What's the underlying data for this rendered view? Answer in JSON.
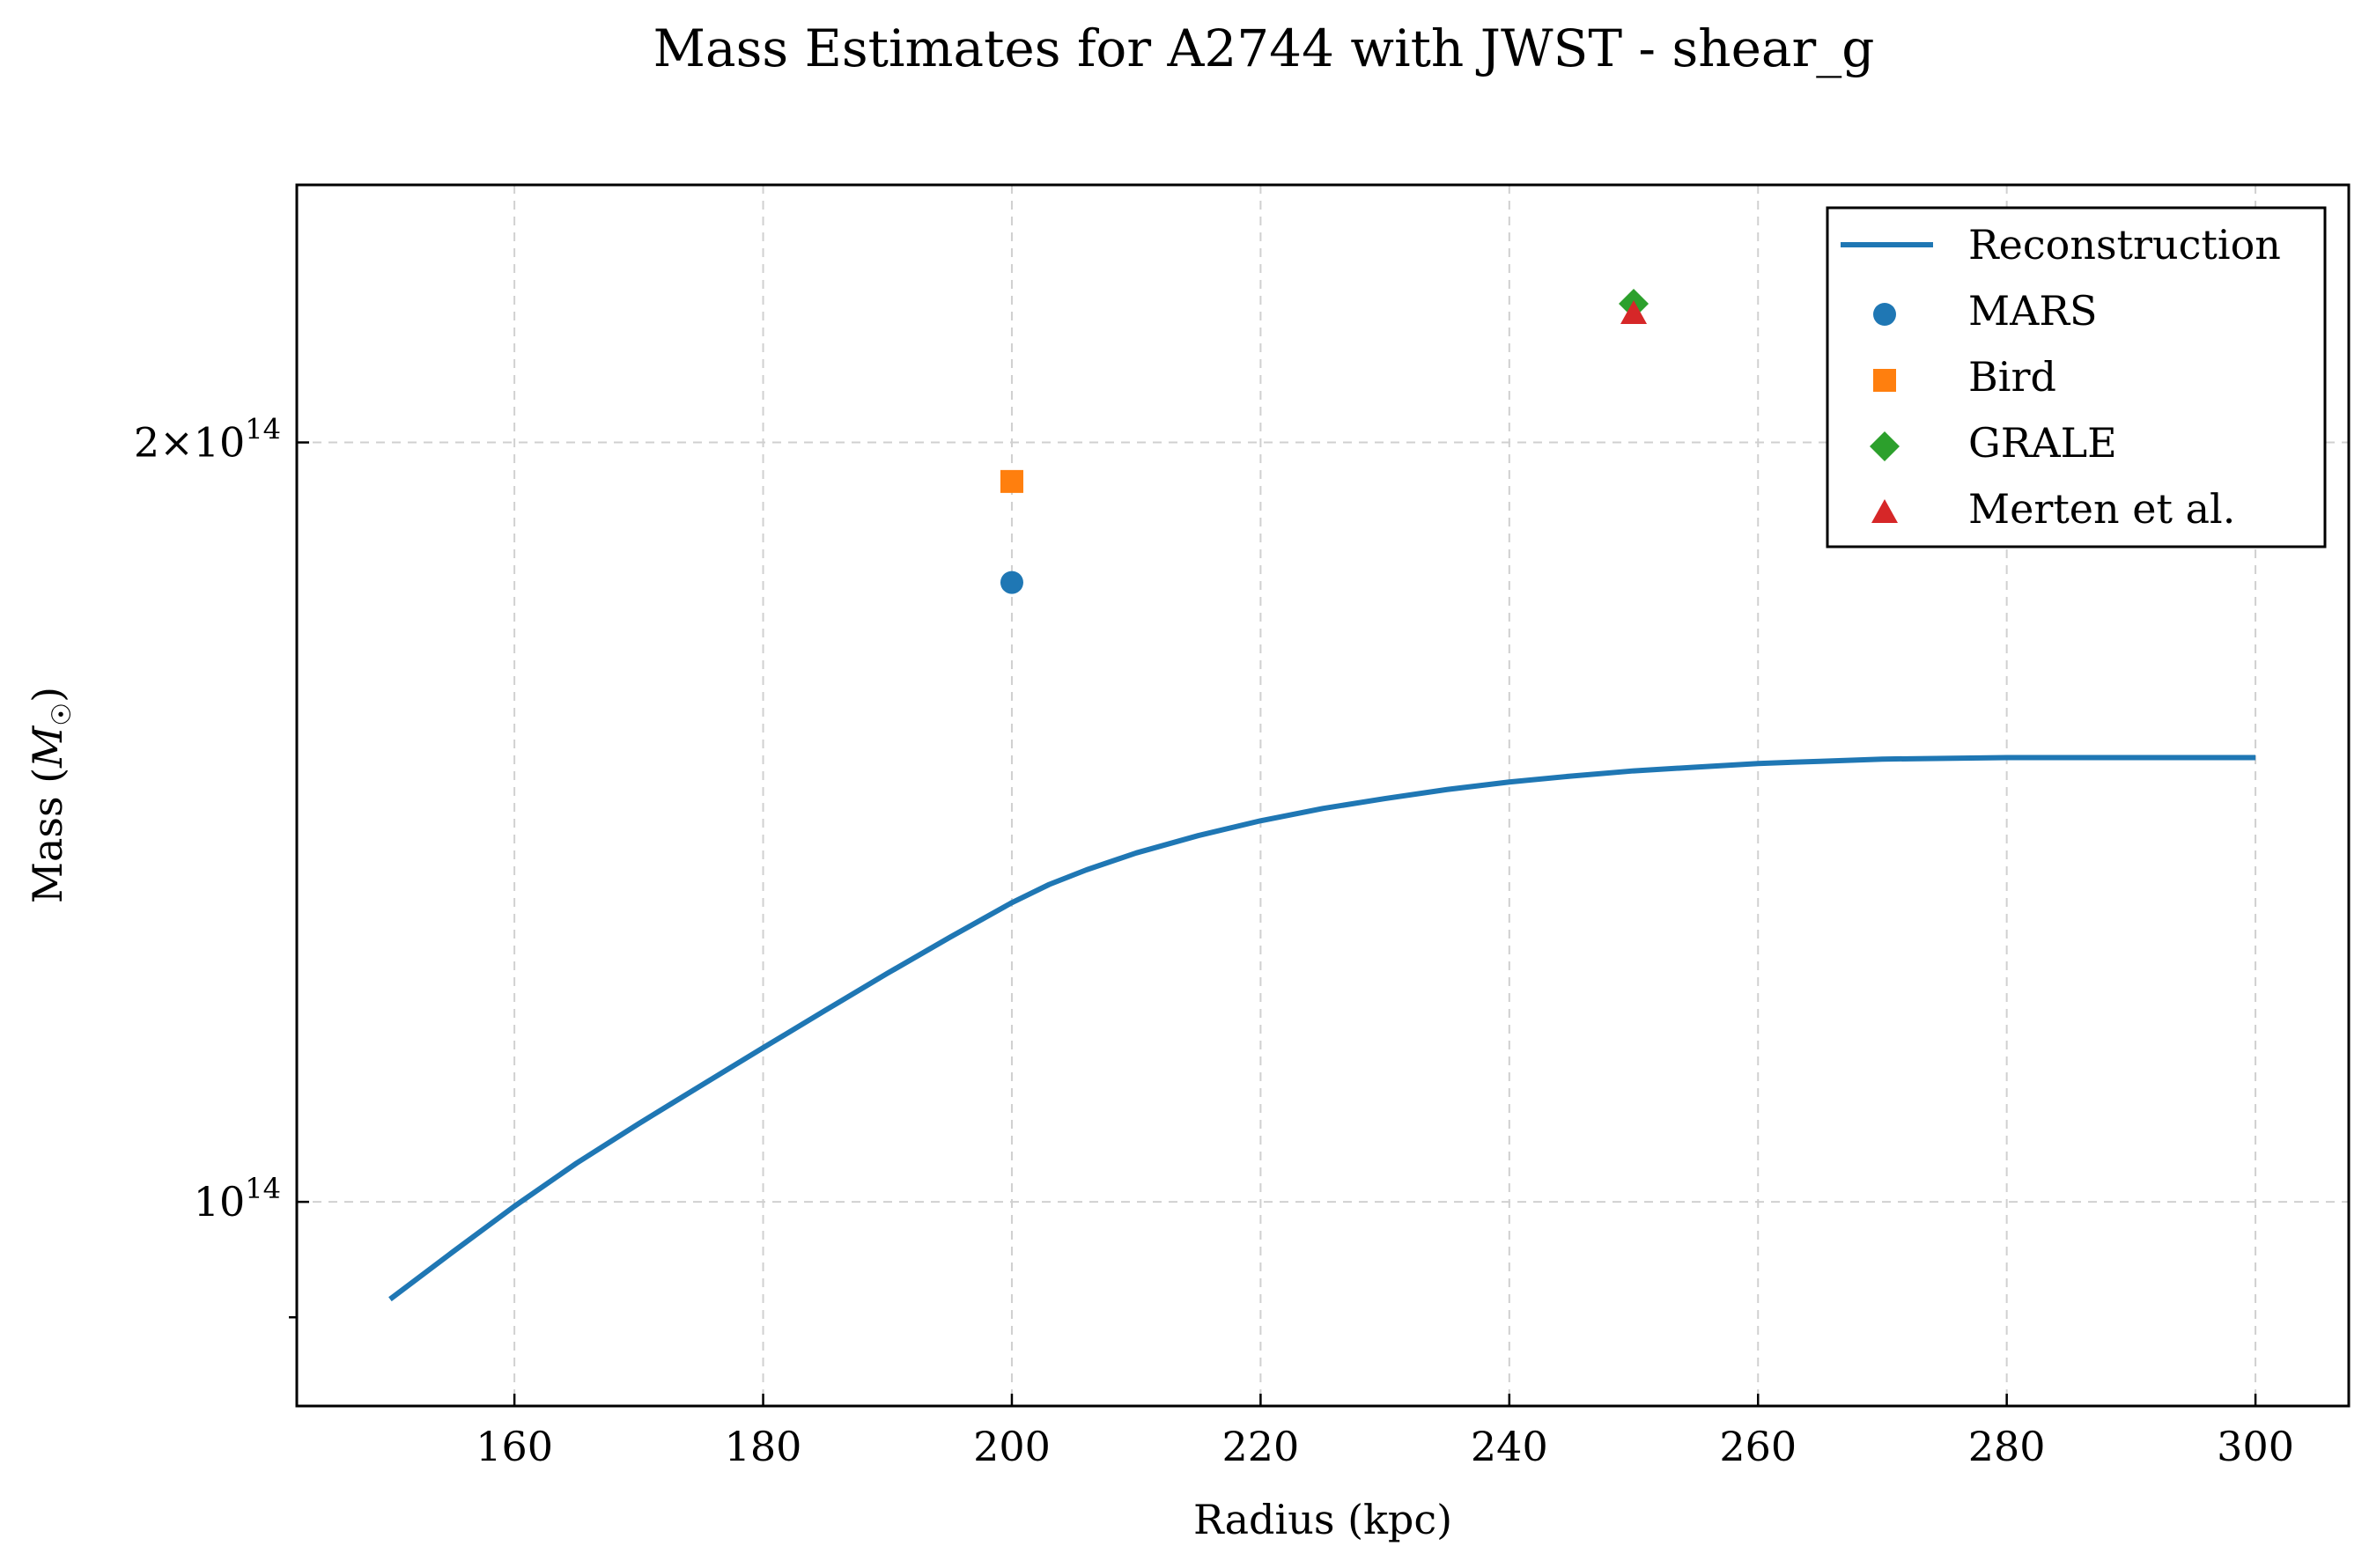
{
  "chart_data": {
    "type": "line",
    "title": "Mass Estimates for A2744 with JWST - shear_g",
    "xlabel": "Radius (kpc)",
    "ylabel": "Mass (M☉)",
    "ylabel_parts": {
      "prefix": "Mass (",
      "symbol": "M",
      "subscript": "☉",
      "suffix": ")"
    },
    "yscale": "log",
    "xlim": [
      142.5,
      307.5
    ],
    "ylim": [
      83000000000000.0,
      253000000000000.0
    ],
    "x_ticks": [
      160,
      180,
      200,
      220,
      240,
      260,
      280,
      300
    ],
    "x_tick_labels": [
      "160",
      "180",
      "200",
      "220",
      "240",
      "260",
      "280",
      "300"
    ],
    "y_major_ticks": [
      {
        "value": 100000000000000.0,
        "label_mantissa": "",
        "label_base": "10",
        "label_exp": "14"
      },
      {
        "value": 200000000000000.0,
        "label_mantissa": "2×",
        "label_base": "10",
        "label_exp": "14"
      }
    ],
    "y_minor_ticks": [
      90000000000000.0
    ],
    "grid": true,
    "legend_position": "top-right",
    "series": [
      {
        "name": "Reconstruction",
        "kind": "line",
        "color": "#1f77b4",
        "x": [
          150,
          155,
          160,
          165,
          170,
          175,
          180,
          185,
          190,
          195,
          200,
          203,
          206,
          210,
          215,
          220,
          225,
          230,
          235,
          240,
          245,
          250,
          255,
          260,
          265,
          270,
          275,
          280,
          285,
          290,
          295,
          300
        ],
        "y": [
          91500000000000.0,
          95500000000000.0,
          99600000000000.0,
          103600000000000.0,
          107400000000000.0,
          111200000000000.0,
          115100000000000.0,
          119100000000000.0,
          123200000000000.0,
          127300000000000.0,
          131400000000000.0,
          133600000000000.0,
          135400000000000.0,
          137500000000000.0,
          139700000000000.0,
          141600000000000.0,
          143200000000000.0,
          144500000000000.0,
          145700000000000.0,
          146700000000000.0,
          147500000000000.0,
          148200000000000.0,
          148700000000000.0,
          149200000000000.0,
          149500000000000.0,
          149800000000000.0,
          149900000000000.0,
          150000000000000.0,
          150000000000000.0,
          150000000000000.0,
          150000000000000.0,
          150000000000000.0
        ]
      },
      {
        "name": "MARS",
        "kind": "scatter",
        "marker": "circle",
        "color": "#1f77b4",
        "x": [
          200
        ],
        "y": [
          176000000000000.0
        ]
      },
      {
        "name": "Bird",
        "kind": "scatter",
        "marker": "square",
        "color": "#ff7f0e",
        "x": [
          200
        ],
        "y": [
          193000000000000.0
        ]
      },
      {
        "name": "GRALE",
        "kind": "scatter",
        "marker": "diamond",
        "color": "#2ca02c",
        "x": [
          250
        ],
        "y": [
          227000000000000.0
        ]
      },
      {
        "name": "Merten et al.",
        "kind": "scatter",
        "marker": "triangle",
        "color": "#d62728",
        "x": [
          250
        ],
        "y": [
          225000000000000.0
        ]
      }
    ]
  }
}
